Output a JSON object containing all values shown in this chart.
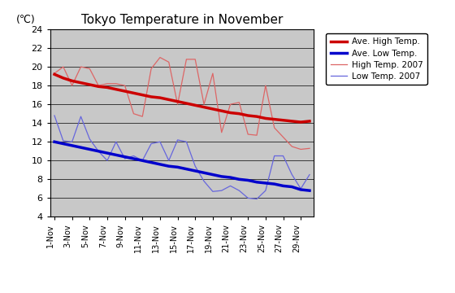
{
  "title": "Tokyo Temperature in November",
  "ylabel": "(℃)",
  "ylim": [
    4,
    24
  ],
  "yticks": [
    4,
    6,
    8,
    10,
    12,
    14,
    16,
    18,
    20,
    22,
    24
  ],
  "ave_high": [
    19.2,
    18.8,
    18.5,
    18.3,
    18.1,
    17.9,
    17.8,
    17.6,
    17.4,
    17.2,
    17.0,
    16.8,
    16.7,
    16.5,
    16.3,
    16.1,
    15.9,
    15.7,
    15.5,
    15.3,
    15.1,
    15.0,
    14.8,
    14.7,
    14.5,
    14.4,
    14.3,
    14.2,
    14.1,
    14.2
  ],
  "ave_low": [
    12.0,
    11.8,
    11.6,
    11.4,
    11.2,
    11.0,
    10.8,
    10.6,
    10.4,
    10.2,
    10.0,
    9.8,
    9.6,
    9.4,
    9.3,
    9.1,
    8.9,
    8.7,
    8.5,
    8.3,
    8.2,
    8.0,
    7.9,
    7.7,
    7.6,
    7.5,
    7.3,
    7.2,
    6.9,
    6.8
  ],
  "high_2007": [
    19.3,
    20.0,
    18.0,
    20.0,
    19.8,
    18.0,
    18.2,
    18.2,
    18.0,
    15.0,
    14.7,
    19.8,
    21.0,
    20.5,
    16.0,
    20.8,
    20.8,
    16.0,
    19.3,
    13.0,
    16.0,
    16.2,
    12.8,
    12.7,
    18.0,
    13.5,
    12.5,
    11.5,
    11.2,
    11.3
  ],
  "low_2007": [
    14.8,
    12.1,
    12.0,
    14.7,
    12.3,
    11.0,
    10.0,
    12.0,
    10.2,
    10.5,
    10.0,
    11.8,
    12.0,
    10.0,
    12.2,
    12.0,
    9.4,
    7.8,
    6.7,
    6.8,
    7.3,
    6.8,
    6.0,
    5.9,
    6.8,
    10.5,
    10.5,
    8.5,
    7.0,
    8.5
  ],
  "ave_high_color": "#cc0000",
  "ave_low_color": "#0000cc",
  "high_2007_color": "#dd6666",
  "low_2007_color": "#6666dd",
  "plot_bg_color": "#c8c8c8",
  "x_tick_labels": [
    "1-Nov",
    "3-Nov",
    "5-Nov",
    "7-Nov",
    "9-Nov",
    "11-Nov",
    "13-Nov",
    "15-Nov",
    "17-Nov",
    "19-Nov",
    "21-Nov",
    "23-Nov",
    "25-Nov",
    "27-Nov",
    "29-Nov"
  ],
  "legend_labels": [
    "Ave. High Temp.",
    "Ave. Low Temp.",
    "High Temp. 2007",
    "Low Temp. 2007"
  ]
}
